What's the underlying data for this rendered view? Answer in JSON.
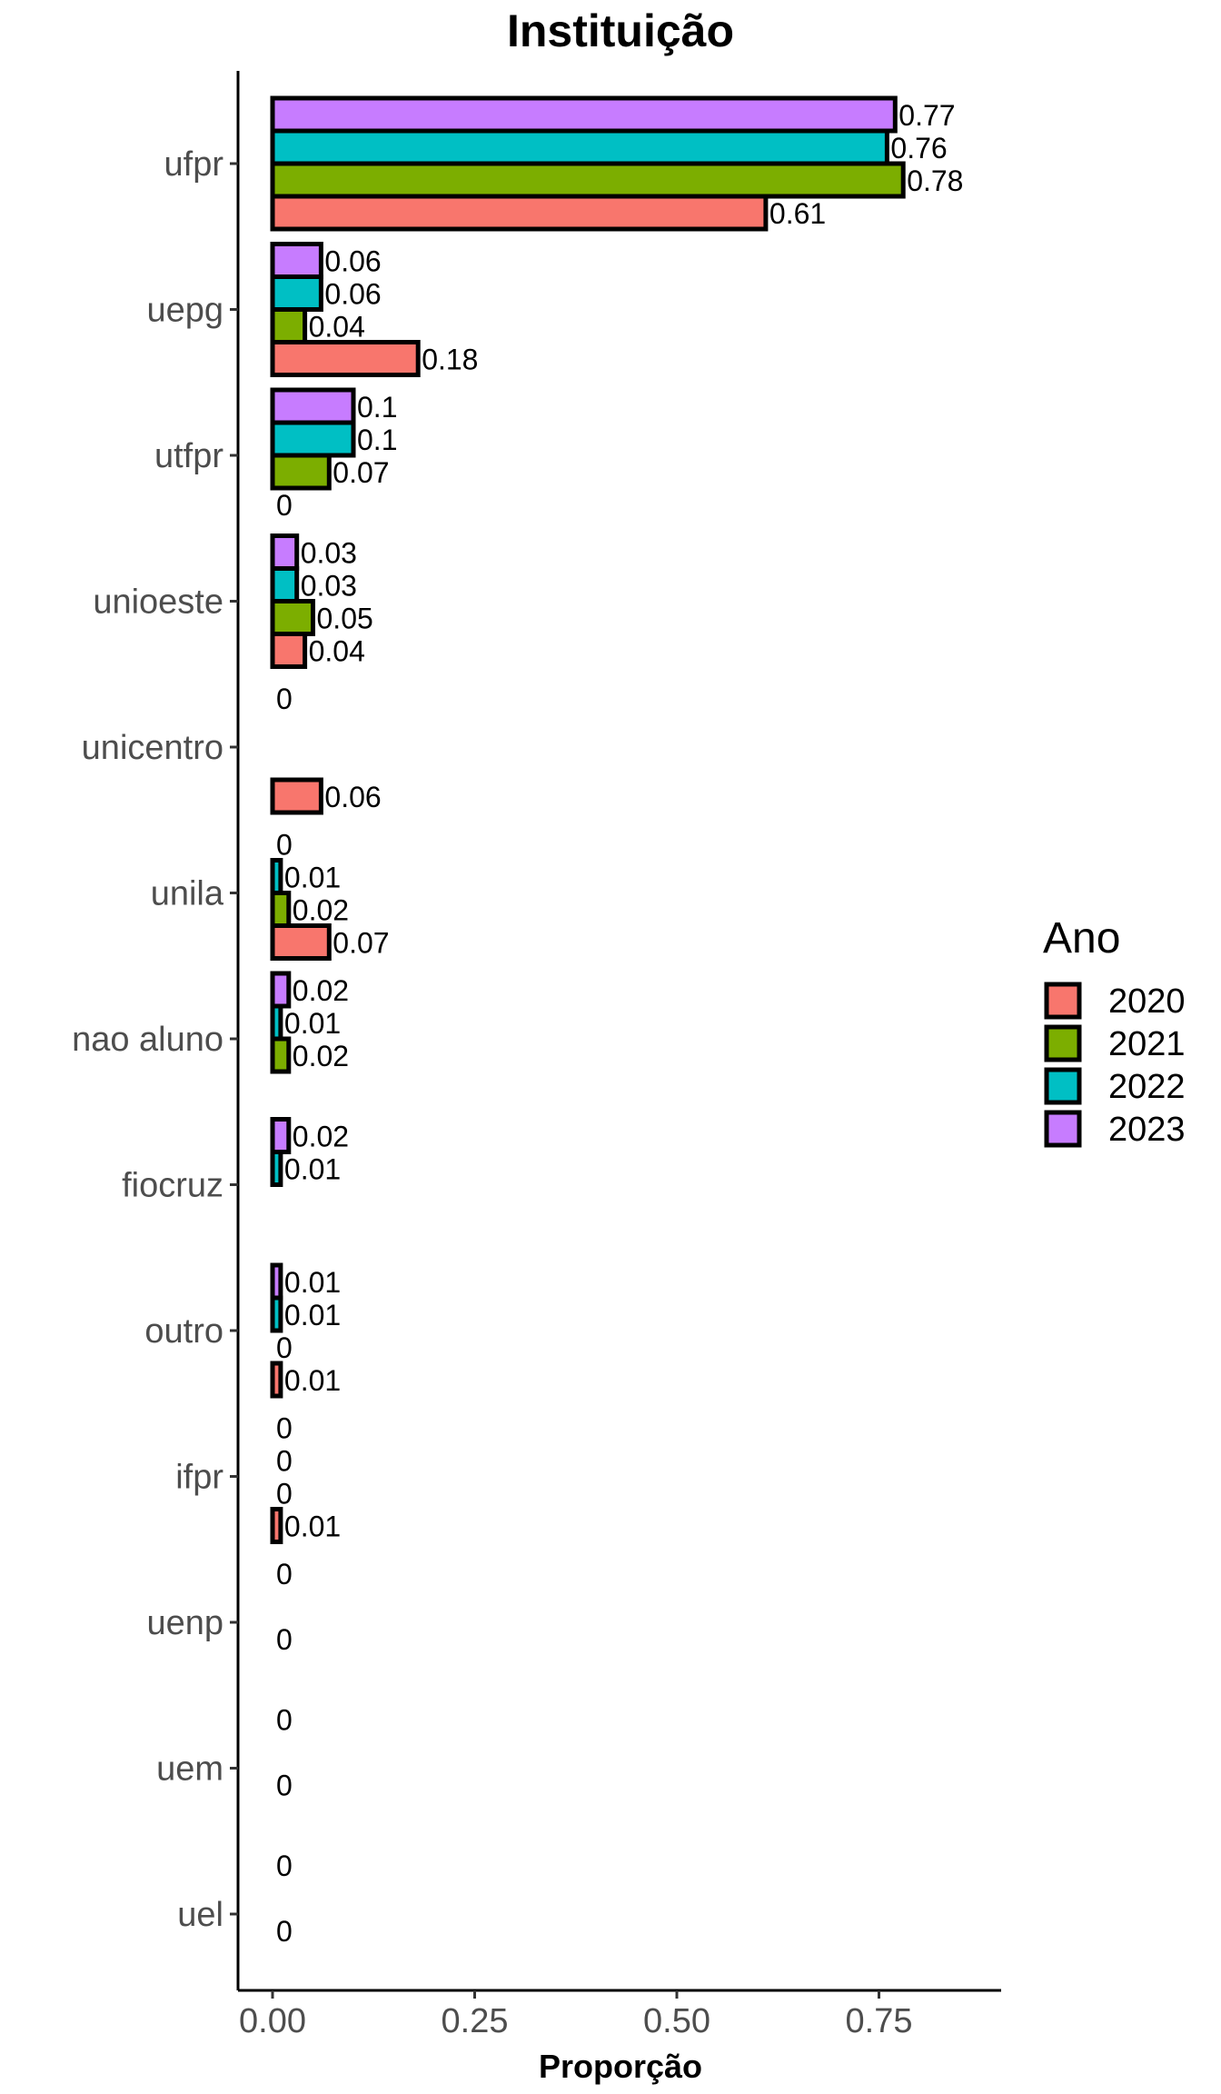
{
  "chart_data": {
    "type": "bar",
    "orientation": "horizontal",
    "title": "Instituição",
    "xlabel": "Proporção",
    "ylabel": "",
    "xlim": [
      -0.02,
      0.9
    ],
    "x_ticks": [
      "0.00",
      "0.25",
      "0.50",
      "0.75"
    ],
    "x_tick_values": [
      0,
      0.25,
      0.5,
      0.75
    ],
    "grid": false,
    "legend_position": "right",
    "legend": {
      "title": "Ano",
      "entries": [
        "2020",
        "2021",
        "2022",
        "2023"
      ]
    },
    "colors": {
      "2020": "#F8766D",
      "2021": "#7CAE00",
      "2022": "#00BFC4",
      "2023": "#C77CFF"
    },
    "categories": [
      "ufpr",
      "uepg",
      "utfpr",
      "unioeste",
      "unicentro",
      "unila",
      "nao aluno",
      "fiocruz",
      "outro",
      "ifpr",
      "uenp",
      "uem",
      "uel"
    ],
    "series": [
      {
        "name": "2020",
        "values": [
          0.61,
          0.18,
          0,
          0.04,
          0.06,
          0.07,
          null,
          null,
          0.01,
          0.01,
          null,
          null,
          null
        ],
        "labels": [
          "0.61",
          "0.18",
          "0",
          "0.04",
          "0.06",
          "0.07",
          null,
          null,
          "0.01",
          "0.01",
          null,
          null,
          null
        ]
      },
      {
        "name": "2021",
        "values": [
          0.78,
          0.04,
          0.07,
          0.05,
          null,
          0.02,
          0.02,
          null,
          0,
          0,
          0,
          0,
          0
        ],
        "labels": [
          "0.78",
          "0.04",
          "0.07",
          "0.05",
          null,
          "0.02",
          "0.02",
          null,
          "0",
          "0",
          "0",
          "0",
          "0"
        ]
      },
      {
        "name": "2022",
        "values": [
          0.76,
          0.06,
          0.1,
          0.03,
          null,
          0.01,
          0.01,
          0.01,
          0.01,
          0,
          null,
          null,
          null
        ],
        "labels": [
          "0.76",
          "0.06",
          "0.1",
          "0.03",
          null,
          "0.01",
          "0.01",
          "0.01",
          "0.01",
          "0",
          null,
          null,
          null
        ]
      },
      {
        "name": "2023",
        "values": [
          0.77,
          0.06,
          0.1,
          0.03,
          0,
          0,
          0.02,
          0.02,
          0.01,
          0,
          0,
          0,
          0
        ],
        "labels": [
          "0.77",
          "0.06",
          "0.1",
          "0.03",
          "0",
          "0",
          "0.02",
          "0.02",
          "0.01",
          "0",
          "0",
          "0",
          "0"
        ]
      }
    ]
  }
}
